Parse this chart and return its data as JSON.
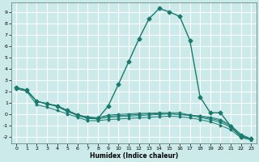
{
  "xlabel": "Humidex (Indice chaleur)",
  "background_color": "#cceaea",
  "grid_color": "#ffffff",
  "line_color": "#1a7a6e",
  "xlim": [
    -0.5,
    23.5
  ],
  "ylim": [
    -2.6,
    9.8
  ],
  "yticks": [
    -2,
    -1,
    0,
    1,
    2,
    3,
    4,
    5,
    6,
    7,
    8,
    9
  ],
  "xticks": [
    0,
    1,
    2,
    3,
    4,
    5,
    6,
    7,
    8,
    9,
    10,
    11,
    12,
    13,
    14,
    15,
    16,
    17,
    18,
    19,
    20,
    21,
    22,
    23
  ],
  "series": [
    {
      "x": [
        0,
        1,
        2,
        3,
        4,
        5,
        6,
        7,
        8,
        9,
        10,
        11,
        12,
        13,
        14,
        15,
        16,
        17,
        18,
        19,
        20,
        21,
        22,
        23
      ],
      "y": [
        2.3,
        2.1,
        1.1,
        0.9,
        0.7,
        0.3,
        -0.1,
        -0.3,
        -0.4,
        0.7,
        2.6,
        4.6,
        6.6,
        8.4,
        9.3,
        9.0,
        8.6,
        6.5,
        1.5,
        0.1,
        0.1,
        -1.1,
        -2.0,
        -2.2
      ],
      "marker": "D",
      "markersize": 2.5,
      "linewidth": 1.0
    },
    {
      "x": [
        0,
        1,
        2,
        3,
        4,
        5,
        6,
        7,
        8,
        9,
        10,
        11,
        12,
        13,
        14,
        15,
        16,
        17,
        18,
        19,
        20,
        21,
        22,
        23
      ],
      "y": [
        2.3,
        2.1,
        1.1,
        0.9,
        0.7,
        0.3,
        -0.1,
        -0.3,
        -0.35,
        -0.1,
        -0.05,
        0.0,
        0.05,
        0.05,
        0.1,
        0.1,
        0.1,
        -0.1,
        -0.2,
        -0.3,
        -0.5,
        -1.0,
        -1.8,
        -2.2
      ],
      "marker": "D",
      "markersize": 1.5,
      "linewidth": 0.7
    },
    {
      "x": [
        0,
        1,
        2,
        3,
        4,
        5,
        6,
        7,
        8,
        9,
        10,
        11,
        12,
        13,
        14,
        15,
        16,
        17,
        18,
        19,
        20,
        21,
        22,
        23
      ],
      "y": [
        2.3,
        2.1,
        1.1,
        0.9,
        0.7,
        0.3,
        -0.1,
        -0.3,
        -0.35,
        -0.2,
        -0.15,
        -0.1,
        -0.05,
        0.0,
        0.0,
        0.0,
        -0.05,
        -0.1,
        -0.2,
        -0.4,
        -0.6,
        -1.1,
        -1.9,
        -2.2
      ],
      "marker": "D",
      "markersize": 1.5,
      "linewidth": 0.7
    },
    {
      "x": [
        0,
        1,
        2,
        3,
        4,
        5,
        6,
        7,
        8,
        9,
        10,
        11,
        12,
        13,
        14,
        15,
        16,
        17,
        18,
        19,
        20,
        21,
        22,
        23
      ],
      "y": [
        2.3,
        2.1,
        1.1,
        0.9,
        0.65,
        0.2,
        -0.15,
        -0.4,
        -0.45,
        -0.3,
        -0.25,
        -0.2,
        -0.15,
        -0.1,
        -0.05,
        0.0,
        -0.05,
        -0.15,
        -0.3,
        -0.5,
        -0.75,
        -1.2,
        -2.0,
        -2.2
      ],
      "marker": "D",
      "markersize": 1.5,
      "linewidth": 0.7
    },
    {
      "x": [
        0,
        1,
        2,
        3,
        4,
        5,
        6,
        7,
        8,
        9,
        10,
        11,
        12,
        13,
        14,
        15,
        16,
        17,
        18,
        19,
        20,
        21,
        22,
        23
      ],
      "y": [
        2.2,
        2.0,
        0.8,
        0.6,
        0.3,
        0.0,
        -0.3,
        -0.6,
        -0.6,
        -0.5,
        -0.45,
        -0.4,
        -0.35,
        -0.3,
        -0.25,
        -0.2,
        -0.25,
        -0.35,
        -0.5,
        -0.7,
        -1.0,
        -1.4,
        -2.1,
        -2.3
      ],
      "marker": "D",
      "markersize": 1.5,
      "linewidth": 0.7
    }
  ]
}
